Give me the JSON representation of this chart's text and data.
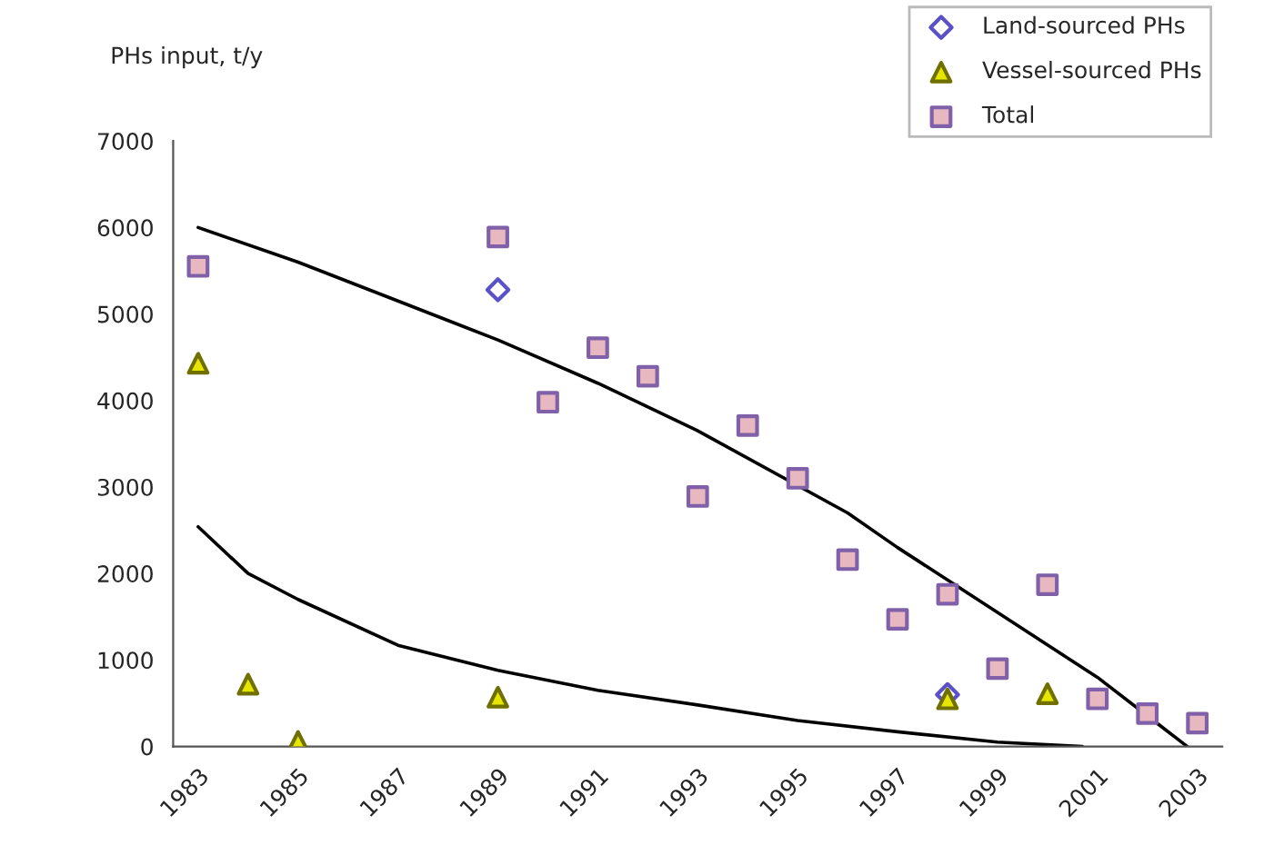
{
  "chart_data": {
    "type": "scatter",
    "ylabel": "PHs input, t/y",
    "x": [
      1983,
      1984,
      1985,
      1986,
      1987,
      1988,
      1989,
      1990,
      1991,
      1992,
      1993,
      1994,
      1995,
      1996,
      1997,
      1998,
      1999,
      2000,
      2001,
      2002,
      2003
    ],
    "xlim": [
      1982.5,
      2003.5
    ],
    "xticks": [
      1983,
      1985,
      1987,
      1989,
      1991,
      1993,
      1995,
      1997,
      1999,
      2001,
      2003
    ],
    "ylim": [
      0,
      7000
    ],
    "yticks": [
      0,
      1000,
      2000,
      3000,
      4000,
      5000,
      6000,
      7000
    ],
    "grid": false,
    "legend": "top right",
    "series": [
      {
        "name": "Land-sourced PHs",
        "color": "#5a50c8",
        "marker": "diamond",
        "values": [
          null,
          null,
          null,
          null,
          null,
          null,
          5280,
          null,
          null,
          null,
          null,
          null,
          null,
          null,
          null,
          600,
          null,
          null,
          null,
          null,
          null
        ]
      },
      {
        "name": "Vessel-sourced PHs",
        "color": "#e6e600",
        "marker": "triangle",
        "values": [
          4430,
          720,
          60,
          null,
          null,
          null,
          570,
          null,
          null,
          null,
          null,
          null,
          null,
          null,
          null,
          550,
          null,
          610,
          null,
          null,
          null
        ]
      },
      {
        "name": "Total",
        "color": "#e8b8c0",
        "marker": "square",
        "values": [
          5550,
          null,
          null,
          null,
          null,
          null,
          5890,
          3980,
          4610,
          4280,
          2890,
          3710,
          3100,
          2160,
          1470,
          1760,
          900,
          1870,
          550,
          380,
          270
        ]
      },
      {
        "type": "line",
        "color": "#000000",
        "line_style": "solid",
        "x": [
          1983,
          1985,
          1987,
          1989,
          1991,
          1993,
          1996,
          1997,
          1999,
          2001,
          2002.8
        ],
        "values": [
          6000,
          5600,
          5150,
          4700,
          4200,
          3650,
          2700,
          2300,
          1550,
          800,
          0
        ]
      },
      {
        "type": "line",
        "color": "#000000",
        "line_style": "solid",
        "x": [
          1983,
          1984,
          1985,
          1987,
          1989,
          1991,
          1993,
          1995,
          1997,
          1999,
          2000.7
        ],
        "values": [
          2540,
          2000,
          1700,
          1170,
          880,
          650,
          480,
          300,
          170,
          50,
          0
        ]
      }
    ]
  }
}
